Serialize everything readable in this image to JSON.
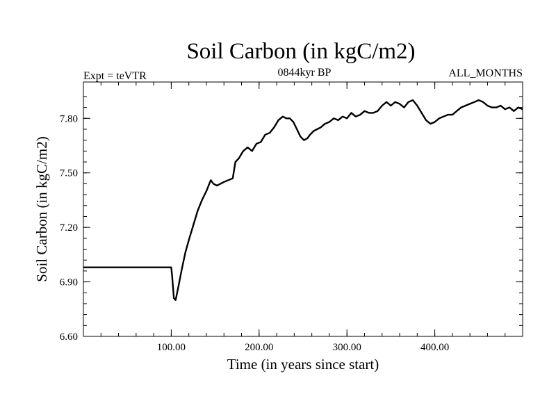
{
  "chart_data": {
    "type": "line",
    "title": "Soil Carbon (in kgC/m2)",
    "subtitle": "0844kyr BP",
    "left_annotation": "Expt = teVTR",
    "right_annotation": "ALL_MONTHS",
    "xlabel": "Time (in years since start)",
    "ylabel": "Soil Carbon (in kgC/m2)",
    "xlim": [
      0,
      500
    ],
    "ylim": [
      6.6,
      8.0
    ],
    "x_ticks": [
      100,
      200,
      300,
      400
    ],
    "x_tick_labels": [
      "100.00",
      "200.00",
      "300.00",
      "400.00"
    ],
    "y_ticks": [
      6.6,
      6.9,
      7.2,
      7.5,
      7.8
    ],
    "y_tick_labels": [
      "6.60",
      "6.90",
      "7.20",
      "7.50",
      "7.80"
    ],
    "grid": false,
    "series": [
      {
        "name": "Soil Carbon",
        "color": "#000000",
        "x": [
          0,
          99,
          100,
          101,
          103,
          105,
          108,
          112,
          116,
          120,
          125,
          130,
          135,
          140,
          145,
          148,
          152,
          156,
          160,
          165,
          170,
          173,
          177,
          182,
          187,
          192,
          197,
          202,
          207,
          212,
          217,
          222,
          227,
          231,
          235,
          239,
          243,
          247,
          251,
          255,
          258,
          262,
          266,
          270,
          275,
          280,
          285,
          290,
          295,
          300,
          305,
          310,
          315,
          320,
          325,
          330,
          335,
          340,
          345,
          350,
          355,
          360,
          365,
          370,
          375,
          380,
          385,
          390,
          395,
          400,
          405,
          410,
          415,
          420,
          425,
          430,
          435,
          440,
          445,
          450,
          455,
          460,
          465,
          470,
          475,
          480,
          485,
          490,
          495,
          500
        ],
        "values": [
          6.98,
          6.98,
          6.98,
          6.93,
          6.81,
          6.8,
          6.87,
          6.97,
          7.06,
          7.13,
          7.21,
          7.29,
          7.35,
          7.4,
          7.46,
          7.44,
          7.43,
          7.44,
          7.45,
          7.46,
          7.47,
          7.56,
          7.58,
          7.62,
          7.64,
          7.62,
          7.66,
          7.67,
          7.71,
          7.72,
          7.75,
          7.79,
          7.81,
          7.8,
          7.8,
          7.78,
          7.74,
          7.7,
          7.68,
          7.69,
          7.71,
          7.73,
          7.74,
          7.75,
          7.77,
          7.78,
          7.8,
          7.79,
          7.81,
          7.8,
          7.83,
          7.81,
          7.82,
          7.84,
          7.83,
          7.83,
          7.84,
          7.87,
          7.89,
          7.87,
          7.89,
          7.88,
          7.86,
          7.89,
          7.9,
          7.87,
          7.83,
          7.79,
          7.77,
          7.78,
          7.8,
          7.81,
          7.82,
          7.82,
          7.84,
          7.86,
          7.87,
          7.88,
          7.89,
          7.9,
          7.89,
          7.87,
          7.86,
          7.86,
          7.87,
          7.85,
          7.86,
          7.84,
          7.86,
          7.85
        ]
      }
    ]
  }
}
